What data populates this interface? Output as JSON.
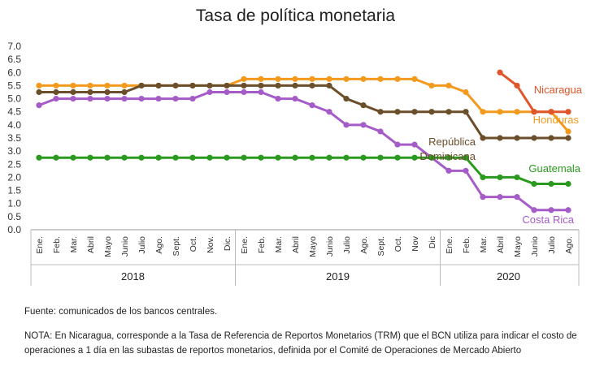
{
  "title": "Tasa de política monetaria",
  "source": "Fuente: comunicados de los bancos centrales.",
  "note": "NOTA: En Nicaragua, corresponde a la Tasa de Referencia de Reportos Monetarios (TRM) que el BCN utiliza para indicar el costo de operaciones a 1 día en las subastas de reportos monetarios, definida por el Comité de Operaciones de Mercado Abierto",
  "chart_data": {
    "type": "line",
    "title": "Tasa de política monetaria",
    "xlabel": "",
    "ylabel": "",
    "ylim": [
      0,
      7
    ],
    "y_ticks": [
      "0.0",
      "0.5",
      "1.0",
      "1.5",
      "2.0",
      "2.5",
      "3.0",
      "3.5",
      "4.0",
      "4.5",
      "5.0",
      "5.5",
      "6.0",
      "6.5",
      "7.0"
    ],
    "x": [
      "Ene.",
      "Feb.",
      "Mar.",
      "Abril",
      "Mayo",
      "Junio",
      "Julio",
      "Ago.",
      "Sept.",
      "Oct.",
      "Nov.",
      "Dic.",
      "Ene.",
      "Feb.",
      "Mar.",
      "Abril",
      "Mayo",
      "Junio",
      "Julio",
      "Ago.",
      "Sept.",
      "Oct.",
      "Nov",
      "Dic",
      "Ene.",
      "Feb.",
      "Mar.",
      "Abril",
      "Mayo",
      "Junio",
      "Julio",
      "Ago."
    ],
    "year_groups": [
      {
        "label": "2018",
        "start": 0,
        "end": 11
      },
      {
        "label": "2019",
        "start": 12,
        "end": 23
      },
      {
        "label": "2020",
        "start": 24,
        "end": 31
      }
    ],
    "grid": false,
    "legend": "inline labels",
    "series": [
      {
        "name": "Honduras",
        "color": "#F39A1E",
        "label_lines": [
          "Honduras"
        ],
        "values": [
          5.5,
          5.5,
          5.5,
          5.5,
          5.5,
          5.5,
          5.5,
          5.5,
          5.5,
          5.5,
          5.5,
          5.5,
          5.75,
          5.75,
          5.75,
          5.75,
          5.75,
          5.75,
          5.75,
          5.75,
          5.75,
          5.75,
          5.75,
          5.5,
          5.5,
          5.25,
          4.5,
          4.5,
          4.5,
          4.5,
          4.5,
          3.75
        ]
      },
      {
        "name": "República Dominicana",
        "color": "#6B4E2A",
        "label_lines": [
          "República",
          "Dominicana"
        ],
        "values": [
          5.25,
          5.25,
          5.25,
          5.25,
          5.25,
          5.25,
          5.5,
          5.5,
          5.5,
          5.5,
          5.5,
          5.5,
          5.5,
          5.5,
          5.5,
          5.5,
          5.5,
          5.5,
          5.0,
          4.75,
          4.5,
          4.5,
          4.5,
          4.5,
          4.5,
          4.5,
          3.5,
          3.5,
          3.5,
          3.5,
          3.5,
          3.5
        ]
      },
      {
        "name": "Costa Rica",
        "color": "#A65CC8",
        "label_lines": [
          "Costa Rica"
        ],
        "values": [
          4.75,
          5.0,
          5.0,
          5.0,
          5.0,
          5.0,
          5.0,
          5.0,
          5.0,
          5.0,
          5.25,
          5.25,
          5.25,
          5.25,
          5.0,
          5.0,
          4.75,
          4.5,
          4.0,
          4.0,
          3.75,
          3.25,
          3.25,
          2.75,
          2.25,
          2.25,
          1.25,
          1.25,
          1.25,
          0.75,
          0.75,
          0.75
        ]
      },
      {
        "name": "Guatemala",
        "color": "#2A9A1E",
        "label_lines": [
          "Guatemala"
        ],
        "values": [
          2.75,
          2.75,
          2.75,
          2.75,
          2.75,
          2.75,
          2.75,
          2.75,
          2.75,
          2.75,
          2.75,
          2.75,
          2.75,
          2.75,
          2.75,
          2.75,
          2.75,
          2.75,
          2.75,
          2.75,
          2.75,
          2.75,
          2.75,
          2.75,
          2.75,
          2.75,
          2.0,
          2.0,
          2.0,
          1.75,
          1.75,
          1.75
        ]
      },
      {
        "name": "Nicaragua",
        "color": "#E0552A",
        "label_lines": [
          "Nicaragua"
        ],
        "values": [
          null,
          null,
          null,
          null,
          null,
          null,
          null,
          null,
          null,
          null,
          null,
          null,
          null,
          null,
          null,
          null,
          null,
          null,
          null,
          null,
          null,
          null,
          null,
          null,
          null,
          null,
          null,
          6.0,
          5.5,
          4.5,
          4.5,
          4.5
        ]
      }
    ]
  }
}
